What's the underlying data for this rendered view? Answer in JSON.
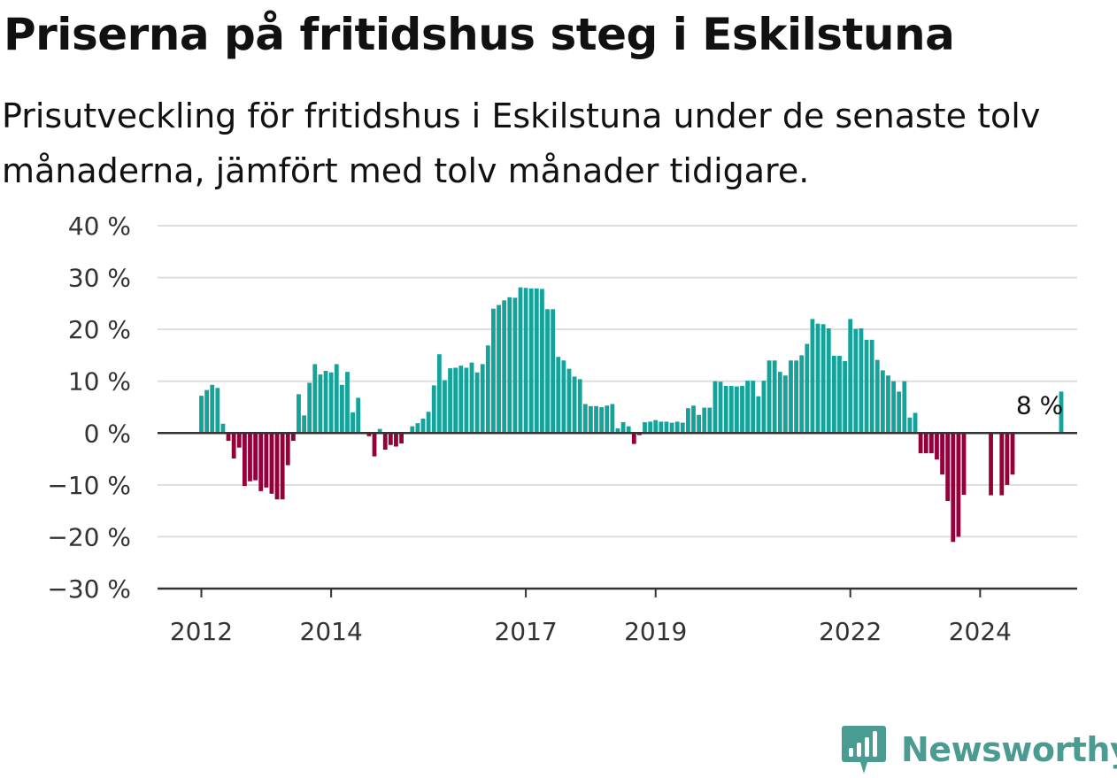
{
  "title": "Priserna på fritidshus steg i Eskilstuna",
  "subtitle": "Prisutveckling för fritidshus i Eskilstuna under de senaste tolv månaderna, jämfört med tolv månader tidigare.",
  "brand": {
    "name": "Newsworthy",
    "color": "#4a9c92"
  },
  "colors": {
    "positive": "#12a39a",
    "negative": "#95003a",
    "grid": "#dddddd",
    "axis": "#333333"
  },
  "chart_data": {
    "type": "bar",
    "title": "Priserna på fritidshus steg i Eskilstuna",
    "ylim": [
      -30,
      40
    ],
    "yticks": [
      40,
      30,
      20,
      10,
      0,
      -10,
      -20,
      -30
    ],
    "ytick_labels": [
      "40 %",
      "30 %",
      "20 %",
      "10 %",
      "0 %",
      "−10 %",
      "−20 %",
      "−30 %"
    ],
    "xticks": [
      {
        "label": "2012",
        "month": 0
      },
      {
        "label": "2014",
        "month": 24
      },
      {
        "label": "2017",
        "month": 60
      },
      {
        "label": "2019",
        "month": 84
      },
      {
        "label": "2022",
        "month": 120
      },
      {
        "label": "2024",
        "month": 144
      }
    ],
    "x_start": "2012-01",
    "grid": true,
    "annotation": {
      "text": "8 %",
      "month": 155
    },
    "values": [
      7.2,
      8.3,
      9.3,
      8.7,
      1.8,
      -1.5,
      -4.9,
      -2.8,
      -10.2,
      -9.3,
      -9.1,
      -11.2,
      -10.5,
      -11.7,
      -12.8,
      -12.8,
      -6.2,
      -1.5,
      7.5,
      3.4,
      9.7,
      13.3,
      11.3,
      12.0,
      11.7,
      13.3,
      9.3,
      11.8,
      4.0,
      6.8,
      null,
      -0.6,
      -4.5,
      0.8,
      -3.2,
      -2.3,
      -2.6,
      -2.0,
      null,
      1.3,
      1.9,
      2.8,
      4.1,
      9.2,
      15.2,
      10.2,
      12.5,
      12.6,
      13.0,
      12.6,
      13.6,
      11.7,
      13.3,
      16.9,
      24.0,
      24.7,
      25.6,
      26.2,
      26.1,
      28.1,
      28.0,
      27.9,
      27.9,
      27.8,
      23.9,
      23.9,
      14.7,
      14.0,
      12.4,
      10.9,
      10.4,
      5.6,
      5.2,
      5.2,
      5.0,
      5.3,
      5.6,
      0.9,
      2.1,
      1.3,
      -2.1,
      -0.4,
      2.1,
      2.2,
      2.5,
      2.2,
      2.2,
      2.0,
      2.2,
      2.0,
      4.8,
      5.3,
      3.5,
      4.9,
      4.9,
      10.0,
      9.9,
      9.1,
      9.1,
      9.0,
      9.1,
      10.1,
      10.1,
      7.1,
      10.1,
      14.0,
      14.0,
      11.8,
      11.1,
      14.0,
      14.0,
      15.0,
      17.2,
      22.0,
      21.1,
      21.0,
      20.2,
      14.9,
      14.9,
      13.9,
      22.0,
      20.1,
      20.2,
      18.0,
      18.0,
      14.1,
      12.1,
      11.1,
      10.0,
      8.0,
      10.0,
      3.0,
      3.9,
      -3.9,
      -3.9,
      -3.9,
      -5.1,
      -8.0,
      -13.1,
      -21.0,
      -20.0,
      -11.9,
      null,
      null,
      null,
      null,
      -12.0,
      null,
      -12.0,
      -10.0,
      -8.0,
      null,
      null,
      null,
      null,
      null,
      null,
      null,
      null,
      8.0
    ]
  }
}
